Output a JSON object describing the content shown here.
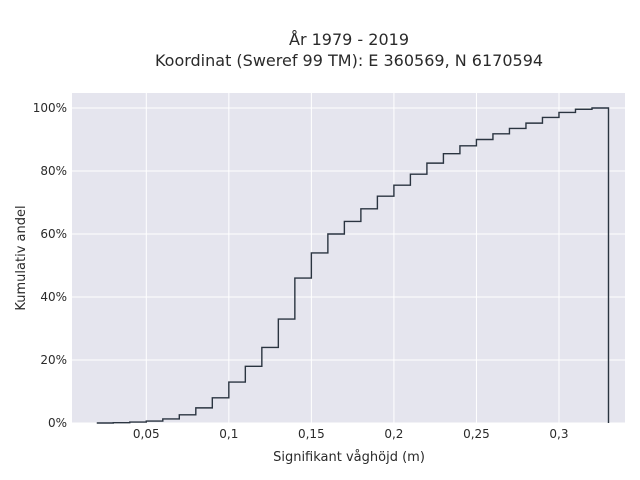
{
  "chart_data": {
    "type": "line",
    "subtype": "cumulative step histogram",
    "title": "År 1979 - 2019",
    "subtitle": "Koordinat (Sweref 99 TM): E 360569, N 6170594",
    "xlabel": "Signifikant våghöjd (m)",
    "ylabel": "Kumulativ andel",
    "xlim": [
      0.005,
      0.34
    ],
    "ylim": [
      0,
      1.02
    ],
    "x_ticks": [
      {
        "value": 0.05,
        "label": "0,05"
      },
      {
        "value": 0.1,
        "label": "0,1"
      },
      {
        "value": 0.15,
        "label": "0,15"
      },
      {
        "value": 0.2,
        "label": "0,2"
      },
      {
        "value": 0.25,
        "label": "0,25"
      },
      {
        "value": 0.3,
        "label": "0,3"
      }
    ],
    "y_ticks": [
      {
        "value": 0,
        "label": "0%"
      },
      {
        "value": 0.2,
        "label": "20%"
      },
      {
        "value": 0.4,
        "label": "40%"
      },
      {
        "value": 0.6,
        "label": "60%"
      },
      {
        "value": 0.8,
        "label": "80%"
      },
      {
        "value": 1.0,
        "label": "100%"
      }
    ],
    "grid": true,
    "colors": {
      "background": "#e5e5ee",
      "grid": "#ffffff",
      "line": "#2a3440"
    },
    "series": [
      {
        "x": [
          0.02,
          0.03,
          0.04,
          0.05,
          0.06,
          0.07,
          0.08,
          0.09,
          0.1,
          0.11,
          0.12,
          0.13,
          0.14,
          0.15,
          0.16,
          0.17,
          0.18,
          0.19,
          0.2,
          0.21,
          0.22,
          0.23,
          0.24,
          0.25,
          0.26,
          0.27,
          0.28,
          0.29,
          0.3,
          0.31,
          0.32,
          0.33
        ],
        "y": [
          0.0,
          0.001,
          0.003,
          0.006,
          0.013,
          0.026,
          0.048,
          0.08,
          0.13,
          0.18,
          0.24,
          0.33,
          0.46,
          0.54,
          0.6,
          0.64,
          0.68,
          0.72,
          0.755,
          0.79,
          0.825,
          0.855,
          0.88,
          0.9,
          0.918,
          0.935,
          0.952,
          0.97,
          0.986,
          0.996,
          1.0,
          1.0
        ]
      }
    ]
  }
}
